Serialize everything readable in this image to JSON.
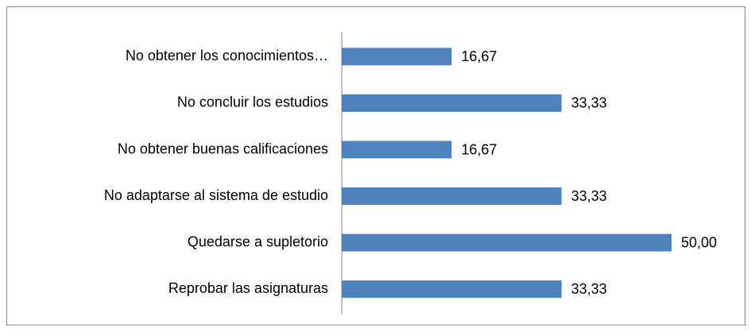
{
  "chart_data": {
    "type": "bar",
    "orientation": "horizontal",
    "categories": [
      "No obtener los conocimientos…",
      "No concluir los estudios",
      "No obtener buenas calificaciones",
      "No adaptarse al sistema de estudio",
      "Quedarse a supletorio",
      "Reprobar las asignaturas"
    ],
    "values": [
      16.67,
      33.33,
      16.67,
      33.33,
      50.0,
      33.33
    ],
    "value_labels": [
      "16,67",
      "33,33",
      "16,67",
      "33,33",
      "50,00",
      "33,33"
    ],
    "color": "#4f81bd"
  }
}
